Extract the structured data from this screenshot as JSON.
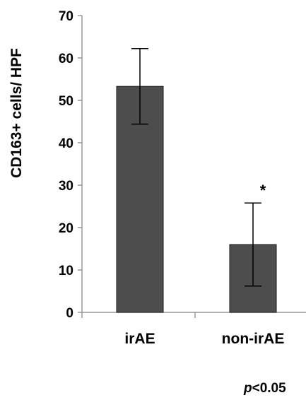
{
  "chart_data": {
    "type": "bar",
    "categories": [
      "irAE",
      "non-irAE"
    ],
    "values": [
      53.3,
      16.0
    ],
    "error": [
      8.9,
      9.8
    ],
    "annotations": [
      "",
      "*"
    ],
    "title": "",
    "xlabel": "",
    "ylabel": "CD163+ cells/ HPF",
    "ylim": [
      0,
      70
    ],
    "yticks": [
      0,
      10,
      20,
      30,
      40,
      50,
      60,
      70
    ],
    "grid": false,
    "bar_color": "#4d4d4d"
  },
  "footnote": {
    "p_symbol": "p",
    "threshold": "<0.05"
  }
}
